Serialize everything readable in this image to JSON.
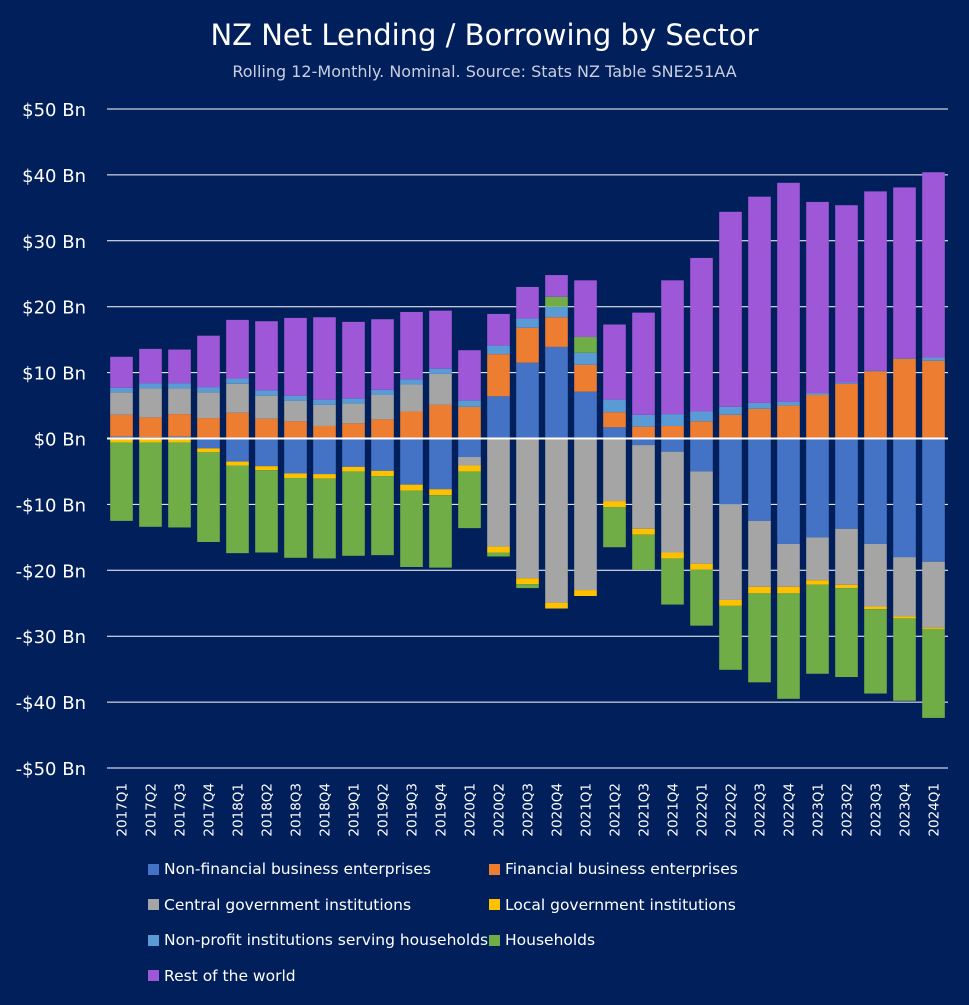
{
  "chart_data": {
    "type": "bar",
    "stacked": true,
    "title": "NZ Net Lending / Borrowing by Sector",
    "subtitle": "Rolling 12-Monthly. Nominal. Source: Stats NZ Table SNE251AA",
    "ylim": [
      -50,
      50
    ],
    "yticks": [
      50,
      40,
      30,
      20,
      10,
      0,
      -10,
      -20,
      -30,
      -40,
      -50
    ],
    "ytick_labels": [
      "$50 Bn",
      "$40 Bn",
      "$30 Bn",
      "$20 Bn",
      "$10 Bn",
      "$0 Bn",
      "-$10 Bn",
      "-$20 Bn",
      "-$30 Bn",
      "-$40 Bn",
      "-$50 Bn"
    ],
    "grid": true,
    "legend_position": "bottom",
    "categories": [
      "2017Q1",
      "2017Q2",
      "2017Q3",
      "2017Q4",
      "2018Q1",
      "2018Q2",
      "2018Q3",
      "2018Q4",
      "2019Q1",
      "2019Q2",
      "2019Q3",
      "2019Q4",
      "2020Q1",
      "2020Q2",
      "2020Q3",
      "2020Q4",
      "2021Q1",
      "2021Q2",
      "2021Q3",
      "2021Q4",
      "2022Q1",
      "2022Q2",
      "2022Q3",
      "2022Q4",
      "2023Q1",
      "2023Q2",
      "2023Q3",
      "2023Q4",
      "2024Q1"
    ],
    "series": [
      {
        "name": "Non-financial business enterprises",
        "color": "#4472c4",
        "values": [
          0.3,
          0.2,
          0.3,
          -1.5,
          -3.5,
          -4.2,
          -5.3,
          -5.4,
          -4.3,
          -4.9,
          -7,
          -7.7,
          -2.8,
          6.4,
          11.5,
          13.9,
          7.1,
          1.7,
          -1,
          -2,
          -5,
          -10,
          -12.5,
          -16,
          -15,
          -13.7,
          -16,
          -18,
          -18.7
        ]
      },
      {
        "name": "Financial business enterprises",
        "color": "#ed7d31",
        "values": [
          3.3,
          3,
          3.4,
          3.1,
          3.9,
          3,
          2.6,
          1.9,
          2.3,
          2.9,
          4.1,
          5.1,
          4.8,
          6.4,
          5.3,
          4.5,
          4.1,
          2.3,
          1.8,
          1.9,
          2.6,
          3.6,
          4.5,
          5,
          6.6,
          8.3,
          10.2,
          12.1,
          11.8
        ]
      },
      {
        "name": "Central government institutions",
        "color": "#a5a5a5",
        "values": [
          3.4,
          4.4,
          3.9,
          3.9,
          4.4,
          3.5,
          3.1,
          3.2,
          3,
          3.7,
          4.1,
          4.7,
          -1.3,
          -16.4,
          -21.2,
          -24.9,
          -23,
          -9.5,
          -12.7,
          -15.3,
          -14,
          -14.5,
          -10,
          -6.5,
          -6.5,
          -8.5,
          -9.5,
          -9,
          -10
        ]
      },
      {
        "name": "Local government institutions",
        "color": "#ffc000",
        "values": [
          -0.6,
          -0.6,
          -0.6,
          -0.6,
          -0.6,
          -0.6,
          -0.7,
          -0.7,
          -0.7,
          -0.8,
          -0.9,
          -0.9,
          -0.9,
          -0.9,
          -0.9,
          -0.9,
          -0.9,
          -0.9,
          -0.9,
          -0.9,
          -0.9,
          -0.9,
          -1,
          -1,
          -0.7,
          -0.5,
          -0.4,
          -0.3,
          -0.2
        ]
      },
      {
        "name": "Non-profit institutions serving households",
        "color": "#5b9bd5",
        "values": [
          0.7,
          0.8,
          0.8,
          0.8,
          0.8,
          0.8,
          0.8,
          0.8,
          0.8,
          0.8,
          0.8,
          0.8,
          1,
          1.3,
          1.4,
          1.6,
          1.8,
          1.9,
          1.8,
          1.8,
          1.5,
          1.2,
          0.9,
          0.6,
          0.3,
          0.2,
          0.1,
          0.1,
          0.5
        ]
      },
      {
        "name": "Households",
        "color": "#70ad47",
        "values": [
          -11.9,
          -12.8,
          -12.9,
          -13.6,
          -13.3,
          -12.5,
          -12.1,
          -12.1,
          -12.8,
          -12,
          -11.6,
          -11,
          -8.6,
          -0.6,
          -0.6,
          1.5,
          2.4,
          -6.1,
          -5.3,
          -7,
          -8.5,
          -9.7,
          -13.5,
          -16,
          -13.5,
          -13.5,
          -12.8,
          -12.5,
          -13.5
        ]
      },
      {
        "name": "Rest of the world",
        "color": "#9e57d6",
        "values": [
          4.7,
          5.2,
          5.1,
          7.8,
          8.9,
          10.5,
          11.8,
          12.5,
          11.6,
          10.7,
          10.2,
          8.8,
          7.6,
          4.8,
          4.8,
          3.3,
          8.6,
          11.4,
          15.5,
          20.3,
          23.3,
          29.6,
          31.3,
          33.2,
          29,
          26.9,
          27.2,
          25.9,
          28.1
        ]
      }
    ]
  }
}
